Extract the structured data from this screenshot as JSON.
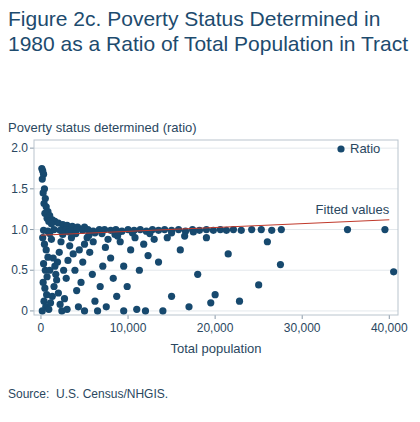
{
  "chart_data": {
    "type": "scatter",
    "title": "Figure 2c. Poverty Status Determined in 1980 as a Ratio of Total Population in Tract",
    "y_label": "Poverty status determined (ratio)",
    "x_label": "Total population",
    "source": "Source:  U.S. Census/NHGIS.",
    "xlim": [
      -800,
      41000
    ],
    "ylim": [
      -0.05,
      2.1
    ],
    "xticks": [
      0,
      {
        "value": 10000,
        "label": "10,000"
      },
      {
        "value": 20000,
        "label": "20,000"
      },
      {
        "value": 30000,
        "label": "30,000"
      },
      {
        "value": 40000,
        "label": "40,000"
      }
    ],
    "yticks": [
      0,
      0.5,
      {
        "value": 1,
        "label": "1.0"
      },
      1.5,
      {
        "value": 2,
        "label": "2.0"
      }
    ],
    "grid": true,
    "legend": "upper right",
    "series": [
      {
        "name": "Ratio",
        "type": "scatter",
        "color": "#17496e",
        "marker": "circle",
        "x": [
          100,
          200,
          300,
          150,
          400,
          250,
          500,
          350,
          600,
          800,
          450,
          1000,
          700,
          1300,
          1600,
          2000,
          2500,
          3000,
          900,
          3600,
          4200,
          5000,
          1200,
          300,
          800,
          1500,
          2200,
          2900,
          3500,
          4100,
          4800,
          5400,
          6000,
          6700,
          7300,
          8000,
          8600,
          9300,
          10000,
          10700,
          11400,
          12100,
          12800,
          13500,
          14200,
          15000,
          15800,
          16600,
          17400,
          18200,
          19000,
          19800,
          20600,
          21300,
          22100,
          23000,
          24200,
          25300,
          26500,
          27600,
          1000,
          2500,
          4000,
          5500,
          7000,
          8500,
          10500,
          12500,
          15000,
          17500,
          6200,
          3200,
          9000,
          35200,
          39500,
          40500,
          27500,
          25000,
          22800,
          18000,
          20000,
          19500,
          17000,
          14000,
          12000,
          15000,
          11000,
          21500,
          16000,
          13500,
          26000,
          200,
          400,
          600,
          800,
          300,
          500,
          700,
          250,
          450,
          650,
          350,
          550,
          150,
          900,
          1100,
          1300,
          1500,
          1700,
          1900,
          2100,
          2300,
          1200,
          1400,
          1600,
          1800,
          2000,
          2200,
          2400,
          2700,
          2900,
          3100,
          3300,
          3500,
          3700,
          3900,
          4100,
          4300,
          4600,
          4800,
          5000,
          5300,
          5600,
          5900,
          6200,
          6500,
          6800,
          7100,
          7400,
          7700,
          8000,
          8300,
          8700,
          9100,
          9500,
          9900,
          10300,
          10800,
          11300,
          11800,
          12300,
          3000,
          5000,
          7500,
          9500,
          1000,
          2600,
          4400,
          6000,
          8800,
          13000,
          14500,
          16500,
          19000
        ],
        "values": [
          1.75,
          1.72,
          1.68,
          1.62,
          1.5,
          1.45,
          1.38,
          1.32,
          1.28,
          1.22,
          1.2,
          1.17,
          1.14,
          1.12,
          1.1,
          1.08,
          1.06,
          1.05,
          1.1,
          1.04,
          1.03,
          1.03,
          1.07,
          0.99,
          0.98,
          1.0,
          0.99,
          1.0,
          0.98,
          1.0,
          0.99,
          1.0,
          0.98,
          1.0,
          1.0,
          0.99,
          1.0,
          0.98,
          1.0,
          0.99,
          1.0,
          0.98,
          1.0,
          0.99,
          1.0,
          0.99,
          1.0,
          0.98,
          1.0,
          0.99,
          1.0,
          0.99,
          1.0,
          0.99,
          1.0,
          0.99,
          1.0,
          1.0,
          0.99,
          1.0,
          0.95,
          0.94,
          0.95,
          0.93,
          0.95,
          0.94,
          0.96,
          0.95,
          0.96,
          0.97,
          0.96,
          0.97,
          0.97,
          1.0,
          1.0,
          0.48,
          0.57,
          0.32,
          0.12,
          0.45,
          0.2,
          0.1,
          0.05,
          0.0,
          0.0,
          0.18,
          0.02,
          0.7,
          0.75,
          0.6,
          0.85,
          0.9,
          0.82,
          0.75,
          0.66,
          0.58,
          0.5,
          0.42,
          0.35,
          0.28,
          0.2,
          0.12,
          0.05,
          0.0,
          0.02,
          0.1,
          0.18,
          0.3,
          0.45,
          0.6,
          0.72,
          0.85,
          0.88,
          0.65,
          0.55,
          0.38,
          0.22,
          0.08,
          0.0,
          0.15,
          0.4,
          0.62,
          0.8,
          0.9,
          0.7,
          0.5,
          0.25,
          0.05,
          0.35,
          0.6,
          0.82,
          0.9,
          0.72,
          0.45,
          0.12,
          0.0,
          0.3,
          0.55,
          0.78,
          0.88,
          0.65,
          0.4,
          0.18,
          0.85,
          0.55,
          0.3,
          0.75,
          0.9,
          0.5,
          0.82,
          0.68,
          0.02,
          0.0,
          0.05,
          0.0,
          0.5,
          0.5,
          0.75,
          0.85,
          0.92,
          0.88,
          0.9,
          0.92,
          0.9
        ]
      },
      {
        "name": "Fitted values",
        "type": "line",
        "color": "#c0392b",
        "line_style": "solid",
        "x": [
          0,
          40000
        ],
        "values": [
          0.93,
          1.12
        ]
      }
    ]
  }
}
